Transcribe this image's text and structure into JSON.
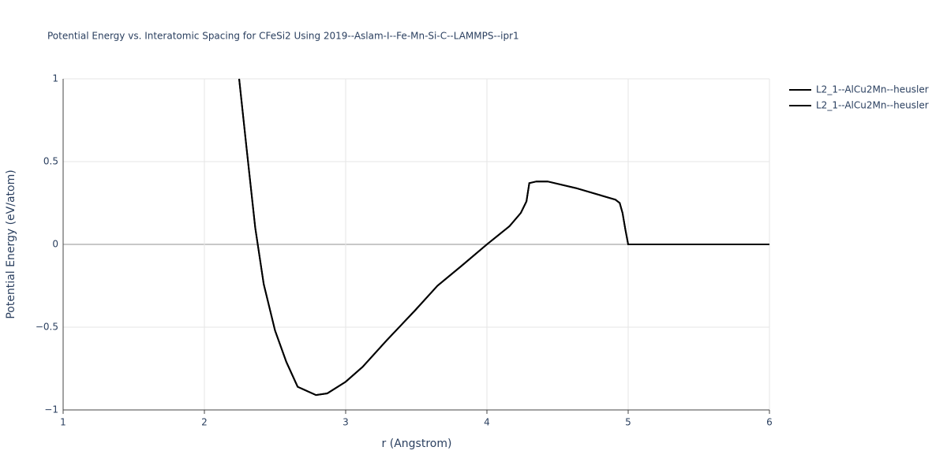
{
  "chart_data": {
    "type": "line",
    "title": "Potential Energy vs. Interatomic Spacing for CFeSi2 Using 2019--Aslam-I--Fe-Mn-Si-C--LAMMPS--ipr1",
    "x_label": "r (Angstrom)",
    "y_label": "Potential Energy (eV/atom)",
    "x": [
      2.246,
      2.3,
      2.36,
      2.42,
      2.5,
      2.58,
      2.66,
      2.79,
      2.87,
      3.0,
      3.12,
      3.29,
      3.49,
      3.65,
      3.82,
      4.0,
      4.16,
      4.24,
      4.28,
      4.3,
      4.35,
      4.43,
      4.63,
      4.91,
      4.94,
      4.96,
      4.98,
      5.0,
      6.0
    ],
    "series": [
      {
        "name": "L2_1--AlCu2Mn--heusler",
        "color": "#000000",
        "values": [
          1.0,
          0.57,
          0.1,
          -0.24,
          -0.52,
          -0.71,
          -0.86,
          -0.91,
          -0.9,
          -0.83,
          -0.74,
          -0.58,
          -0.4,
          -0.25,
          -0.13,
          0,
          0.11,
          0.19,
          0.26,
          0.37,
          0.38,
          0.38,
          0.34,
          0.27,
          0.25,
          0.19,
          0.09,
          0,
          0
        ]
      },
      {
        "name": "L2_1--AlCu2Mn--heusler",
        "color": "#000000",
        "values": [
          1.0,
          0.57,
          0.1,
          -0.24,
          -0.52,
          -0.71,
          -0.86,
          -0.91,
          -0.9,
          -0.83,
          -0.74,
          -0.58,
          -0.4,
          -0.25,
          -0.13,
          0,
          0.11,
          0.19,
          0.26,
          0.37,
          0.38,
          0.38,
          0.34,
          0.27,
          0.25,
          0.19,
          0.09,
          0,
          0
        ]
      }
    ],
    "xlim": [
      1,
      6
    ],
    "xticks": [
      1,
      2,
      3,
      4,
      5,
      6
    ],
    "ylim": [
      -1,
      1
    ],
    "yticks": [
      {
        "value": -1,
        "label": "−1"
      },
      {
        "value": -0.5,
        "label": "−0.5"
      },
      0,
      0.5,
      1
    ],
    "grid": true,
    "legend": "top-right"
  }
}
